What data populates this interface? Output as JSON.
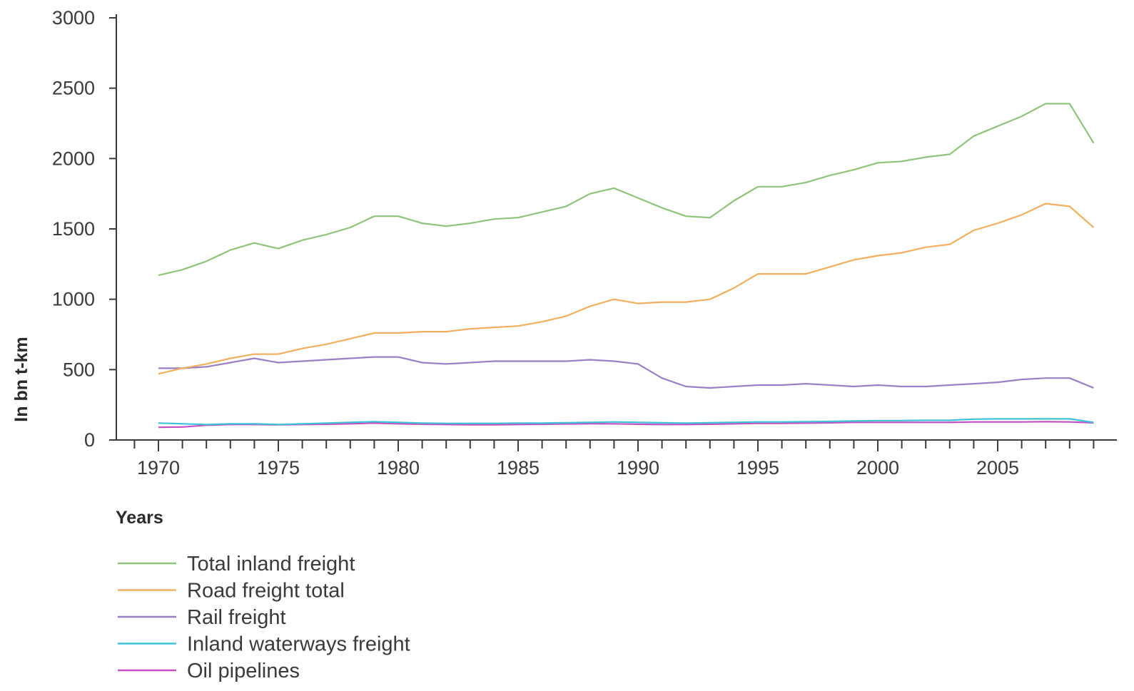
{
  "chart_data": {
    "type": "line",
    "xlabel": "Years",
    "ylabel": "In bn t-km",
    "xlim": [
      1968,
      2012
    ],
    "ylim": [
      0,
      3000
    ],
    "x_ticks": [
      1970,
      1975,
      1980,
      1985,
      1990,
      1995,
      2000,
      2005
    ],
    "y_ticks": [
      0,
      500,
      1000,
      1500,
      2000,
      2500,
      3000
    ],
    "grid": false,
    "legend_position": "bottom-left",
    "x": [
      1970,
      1971,
      1972,
      1973,
      1974,
      1975,
      1976,
      1977,
      1978,
      1979,
      1980,
      1981,
      1982,
      1983,
      1984,
      1985,
      1986,
      1987,
      1988,
      1989,
      1990,
      1991,
      1992,
      1993,
      1994,
      1995,
      1996,
      1997,
      1998,
      1999,
      2000,
      2001,
      2002,
      2003,
      2004,
      2005,
      2006,
      2007,
      2008,
      2009
    ],
    "series": [
      {
        "name": "Total inland freight",
        "color": "#8dc47a",
        "values": [
          1170,
          1210,
          1270,
          1350,
          1400,
          1360,
          1420,
          1460,
          1510,
          1590,
          1590,
          1540,
          1520,
          1540,
          1570,
          1580,
          1620,
          1660,
          1750,
          1790,
          1720,
          1650,
          1590,
          1580,
          1700,
          1800,
          1800,
          1830,
          1880,
          1920,
          1970,
          1980,
          2010,
          2030,
          2160,
          2230,
          2300,
          2390,
          2390,
          2110
        ]
      },
      {
        "name": "Road freight total",
        "color": "#f2b05e",
        "values": [
          470,
          510,
          540,
          580,
          610,
          610,
          650,
          680,
          720,
          760,
          760,
          770,
          770,
          790,
          800,
          810,
          840,
          880,
          950,
          1000,
          970,
          980,
          980,
          1000,
          1080,
          1180,
          1180,
          1180,
          1230,
          1280,
          1310,
          1330,
          1370,
          1390,
          1490,
          1540,
          1600,
          1680,
          1660,
          1510
        ]
      },
      {
        "name": "Rail freight",
        "color": "#9a7fc4",
        "values": [
          510,
          510,
          520,
          550,
          580,
          550,
          560,
          570,
          580,
          590,
          590,
          550,
          540,
          550,
          560,
          560,
          560,
          560,
          570,
          560,
          540,
          440,
          380,
          370,
          380,
          390,
          390,
          400,
          390,
          380,
          390,
          380,
          380,
          390,
          400,
          410,
          430,
          440,
          440,
          370
        ]
      },
      {
        "name": "Inland waterways freight",
        "color": "#3cc3d8",
        "values": [
          120,
          115,
          110,
          115,
          115,
          110,
          115,
          120,
          125,
          130,
          125,
          120,
          118,
          118,
          118,
          120,
          120,
          122,
          125,
          128,
          125,
          122,
          120,
          122,
          125,
          128,
          128,
          130,
          132,
          135,
          138,
          138,
          140,
          140,
          148,
          150,
          150,
          150,
          150,
          125
        ]
      },
      {
        "name": "Oil pipelines",
        "color": "#c44fc4",
        "values": [
          90,
          92,
          105,
          110,
          110,
          108,
          110,
          112,
          115,
          120,
          115,
          112,
          110,
          108,
          108,
          110,
          112,
          114,
          116,
          115,
          112,
          110,
          110,
          112,
          115,
          118,
          118,
          120,
          122,
          125,
          125,
          125,
          125,
          125,
          128,
          128,
          128,
          130,
          128,
          122
        ]
      }
    ]
  }
}
